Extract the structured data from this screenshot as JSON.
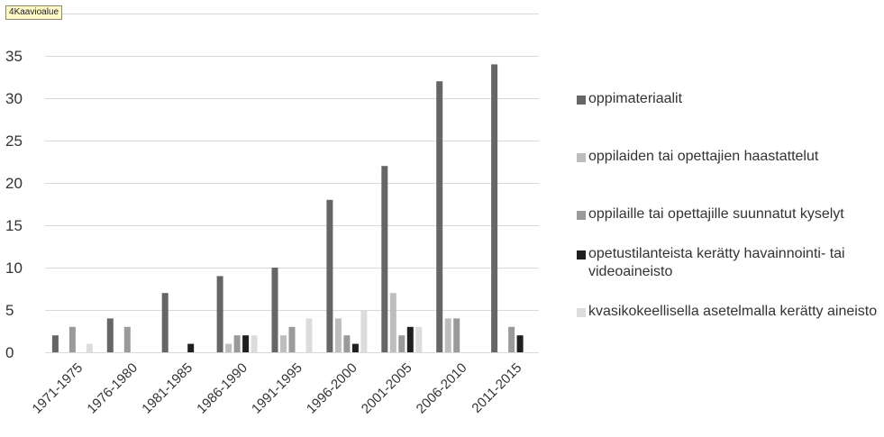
{
  "tooltip": {
    "prefix": "4",
    "label": "Kaavioalue"
  },
  "chart_data": {
    "type": "bar",
    "categories": [
      "1971-1975",
      "1976-1980",
      "1981-1985",
      "1986-1990",
      "1991-1995",
      "1996-2000",
      "2001-2005",
      "2006-2010",
      "2011-2015"
    ],
    "ylim": [
      0,
      40
    ],
    "yticks": [
      0,
      5,
      10,
      15,
      20,
      25,
      30,
      35
    ],
    "grid": true,
    "legend_position": "right",
    "series": [
      {
        "name": "oppimateriaalit",
        "color": "#666666",
        "values": [
          2,
          4,
          7,
          9,
          10,
          18,
          22,
          32,
          34
        ]
      },
      {
        "name": "oppilaiden tai opettajien haastattelut",
        "color": "#bdbdbd",
        "values": [
          0,
          0,
          0,
          1,
          2,
          4,
          7,
          4,
          0
        ]
      },
      {
        "name": "oppilaille tai opettajille suunnatut kyselyt",
        "color": "#9a9a9a",
        "values": [
          3,
          3,
          0,
          2,
          3,
          2,
          2,
          4,
          3
        ]
      },
      {
        "name": "opetustilanteista kerätty havainnointi- tai videoaineisto",
        "color": "#1f1f1f",
        "values": [
          0,
          0,
          1,
          2,
          0,
          1,
          3,
          0,
          2
        ]
      },
      {
        "name": "kvasikokeellisella asetelmalla kerätty aineisto",
        "color": "#dcdcdc",
        "values": [
          1,
          0,
          0,
          2,
          4,
          5,
          3,
          0,
          0
        ]
      }
    ],
    "legend": [
      {
        "label": "oppimateriaalit",
        "color": "#666666"
      },
      {
        "label": "oppilaiden tai opettajien haastattelut",
        "color": "#bdbdbd"
      },
      {
        "label": "oppilaille tai opettajille suunnatut kyselyt",
        "color": "#9a9a9a"
      },
      {
        "label": "opetustilanteista kerätty havainnointi- tai videoaineisto",
        "color": "#1f1f1f"
      },
      {
        "label": "kvasikokeellisella asetelmalla kerätty aineisto",
        "color": "#dcdcdc"
      }
    ]
  }
}
